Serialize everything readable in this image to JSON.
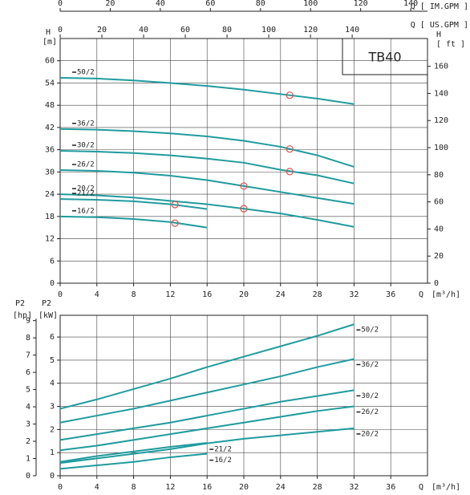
{
  "chart_data": [
    {
      "type": "line",
      "title": "TB40",
      "x_label": "Q",
      "x_unit": "[m³/h]",
      "xlim": [
        0,
        40
      ],
      "xticks": [
        0,
        4,
        8,
        12,
        16,
        20,
        24,
        28,
        32,
        36
      ],
      "y_label": "H",
      "y_unit": "[m]",
      "ylim": [
        0,
        66
      ],
      "yticks": [
        0,
        6,
        12,
        18,
        24,
        30,
        36,
        42,
        48,
        54,
        60
      ],
      "y2_label": "H",
      "y2_unit": "[ ft ]",
      "y2lim": [
        0,
        180.5
      ],
      "y2ticks": [
        0,
        20,
        40,
        60,
        80,
        100,
        120,
        140,
        160
      ],
      "top_axes": [
        {
          "label": "Q [ IM.GPM ]",
          "xlim": [
            0,
            146.7
          ],
          "xticks": [
            0,
            20,
            40,
            60,
            80,
            100,
            120,
            140
          ]
        },
        {
          "label": "Q [ US.GPM ]",
          "xlim": [
            0,
            176.1
          ],
          "xticks": [
            0,
            20,
            40,
            60,
            80,
            100,
            120,
            140
          ]
        }
      ],
      "grid": true,
      "color": "#1f9b9f",
      "marker_color": "#d9534f",
      "series": [
        {
          "name": "50/2",
          "x": [
            0,
            4,
            8,
            12,
            16,
            20,
            24,
            28,
            32
          ],
          "values": [
            55.4,
            55.2,
            54.7,
            54,
            53.2,
            52.2,
            51,
            49.8,
            48.3
          ],
          "duty_point": {
            "x": 25,
            "y": 50.7
          }
        },
        {
          "name": "36/2",
          "x": [
            0,
            4,
            8,
            12,
            16,
            20,
            24,
            28,
            32
          ],
          "values": [
            41.6,
            41.4,
            41,
            40.4,
            39.6,
            38.4,
            36.8,
            34.5,
            31.4
          ],
          "duty_point": {
            "x": 25,
            "y": 36.2
          }
        },
        {
          "name": "30/2",
          "x": [
            0,
            4,
            8,
            12,
            16,
            20,
            24,
            28,
            32
          ],
          "values": [
            35.7,
            35.5,
            35.1,
            34.5,
            33.6,
            32.5,
            30.6,
            29.1,
            26.9
          ],
          "duty_point": {
            "x": 25,
            "y": 30.1
          }
        },
        {
          "name": "26/2",
          "x": [
            0,
            4,
            8,
            12,
            16,
            20,
            24,
            28,
            32
          ],
          "values": [
            30.5,
            30.3,
            29.8,
            29,
            27.8,
            26.2,
            24.6,
            23,
            21.4
          ],
          "duty_point": {
            "x": 20,
            "y": 26.2
          }
        },
        {
          "name": "20/2",
          "x": [
            0,
            4,
            8,
            12,
            16,
            20,
            24,
            28,
            32
          ],
          "values": [
            24,
            23.7,
            23.1,
            22.2,
            21.3,
            20.1,
            18.8,
            17.1,
            15.2
          ],
          "duty_point": {
            "x": 20,
            "y": 20.1
          }
        },
        {
          "name": "21/2",
          "x": [
            0,
            4,
            8,
            12,
            16
          ],
          "values": [
            22.7,
            22.5,
            22.1,
            21.3,
            20
          ],
          "duty_point": {
            "x": 12.5,
            "y": 21.2
          }
        },
        {
          "name": "16/2",
          "x": [
            0,
            4,
            8,
            12,
            16
          ],
          "values": [
            18,
            17.8,
            17.3,
            16.5,
            15
          ],
          "duty_point": {
            "x": 12.5,
            "y": 16.2
          }
        }
      ]
    },
    {
      "type": "line",
      "x_label": "Q",
      "x_unit": "[m³/h]",
      "xlim": [
        0,
        40
      ],
      "xticks": [
        0,
        4,
        8,
        12,
        16,
        20,
        24,
        28,
        32,
        36
      ],
      "y_label": "P2",
      "y_unit": "[kW]",
      "ylim": [
        0,
        6.94
      ],
      "yticks": [
        0,
        1,
        2,
        3,
        4,
        5,
        6
      ],
      "y2_label": "P2",
      "y2_unit": "[hp]",
      "y2lim": [
        0,
        9.31
      ],
      "y2ticks": [
        0,
        1,
        2,
        3,
        4,
        5,
        6,
        7,
        8,
        9
      ],
      "grid": true,
      "color": "#1f9b9f",
      "series": [
        {
          "name": "50/2",
          "x": [
            0,
            4,
            8,
            12,
            16,
            20,
            24,
            28,
            32
          ],
          "values": [
            2.9,
            3.3,
            3.75,
            4.2,
            4.7,
            5.15,
            5.6,
            6.05,
            6.55
          ]
        },
        {
          "name": "36/2",
          "x": [
            0,
            4,
            8,
            12,
            16,
            20,
            24,
            28,
            32
          ],
          "values": [
            2.3,
            2.6,
            2.9,
            3.25,
            3.6,
            3.95,
            4.3,
            4.7,
            5.05
          ]
        },
        {
          "name": "30/2",
          "x": [
            0,
            4,
            8,
            12,
            16,
            20,
            24,
            28,
            32
          ],
          "values": [
            1.55,
            1.8,
            2.05,
            2.3,
            2.6,
            2.9,
            3.2,
            3.45,
            3.7
          ]
        },
        {
          "name": "26/2",
          "x": [
            0,
            4,
            8,
            12,
            16,
            20,
            24,
            28,
            32
          ],
          "values": [
            1.1,
            1.3,
            1.55,
            1.8,
            2.05,
            2.3,
            2.55,
            2.8,
            3
          ]
        },
        {
          "name": "20/2",
          "x": [
            0,
            4,
            8,
            12,
            16,
            20,
            24,
            28,
            32
          ],
          "values": [
            0.55,
            0.75,
            0.95,
            1.15,
            1.4,
            1.6,
            1.75,
            1.9,
            2.05
          ]
        },
        {
          "name": "21/2",
          "x": [
            0,
            4,
            8,
            12,
            16
          ],
          "values": [
            0.6,
            0.85,
            1.05,
            1.25,
            1.42
          ]
        },
        {
          "name": "16/2",
          "x": [
            0,
            4,
            8,
            12,
            16
          ],
          "values": [
            0.3,
            0.45,
            0.6,
            0.8,
            0.95
          ]
        }
      ]
    }
  ]
}
